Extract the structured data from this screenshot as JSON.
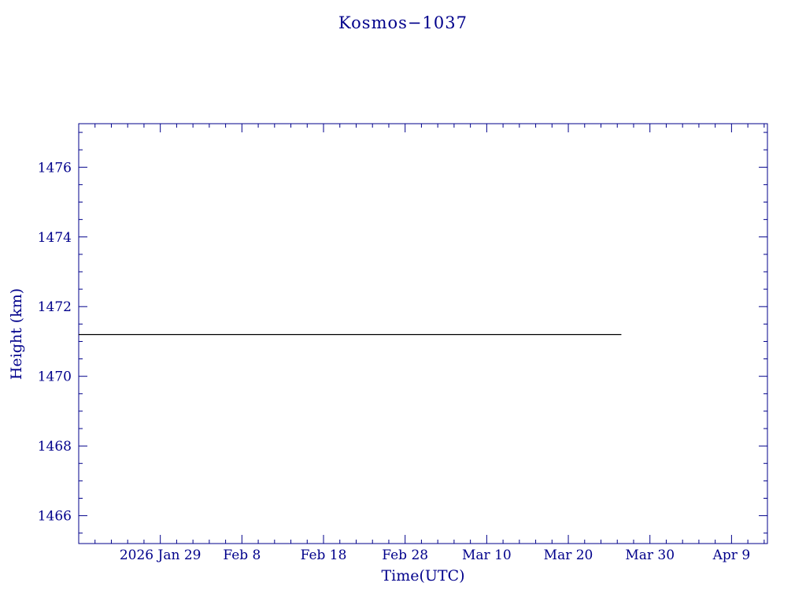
{
  "page": {
    "title": "Kosmos−1037"
  },
  "chart_data": {
    "type": "line",
    "title": "Kosmos−1037",
    "xlabel": "Time(UTC)",
    "ylabel": "Height (km)",
    "x_unit": "days, 0 = 2026 Jan 19 (UTC)",
    "xlim": [
      0,
      84.4
    ],
    "ylim": [
      1465.2,
      1477.25
    ],
    "grid": false,
    "legend": "none",
    "frame_color": "#00008B",
    "text_color": "#00008B",
    "line_color": "#000000",
    "x_major_ticks": [
      {
        "value": 10,
        "label": "2026 Jan 29"
      },
      {
        "value": 20,
        "label": "Feb 8"
      },
      {
        "value": 30,
        "label": "Feb 18"
      },
      {
        "value": 40,
        "label": "Feb 28"
      },
      {
        "value": 50,
        "label": "Mar 10"
      },
      {
        "value": 60,
        "label": "Mar 20"
      },
      {
        "value": 70,
        "label": "Mar 30"
      },
      {
        "value": 80,
        "label": "Apr 9"
      }
    ],
    "x_minor_step": 2,
    "y_major_ticks": [
      {
        "value": 1466,
        "label": "1466"
      },
      {
        "value": 1468,
        "label": "1468"
      },
      {
        "value": 1470,
        "label": "1470"
      },
      {
        "value": 1472,
        "label": "1472"
      },
      {
        "value": 1474,
        "label": "1474"
      },
      {
        "value": 1476,
        "label": "1476"
      }
    ],
    "y_minor_step": 0.5,
    "series": [
      {
        "name": "Height (km)",
        "x": [
          0,
          66.5
        ],
        "y": [
          1471.2,
          1471.2
        ]
      }
    ]
  }
}
